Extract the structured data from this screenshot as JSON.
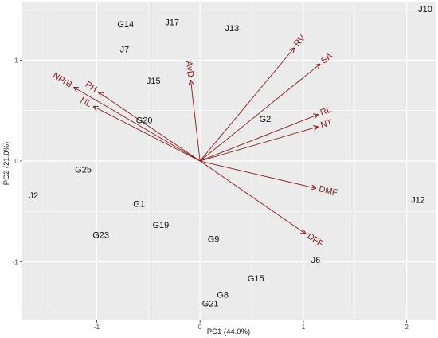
{
  "chart_data": {
    "type": "scatter",
    "subtype": "biplot",
    "title": "",
    "xlabel": "PC1 (44.0%)",
    "ylabel": "PC2 (21.0%)",
    "xlim": [
      -1.72,
      2.28
    ],
    "ylim": [
      -1.58,
      1.58
    ],
    "x_ticks": [
      -1,
      0,
      1,
      2
    ],
    "y_ticks": [
      -1,
      0,
      1
    ],
    "grid": true,
    "panel_background": "#ebebeb",
    "grid_color": "#ffffff",
    "vector_color": "#8b1a1a",
    "point_label_color": "#111111",
    "observations": [
      {
        "label": "J10",
        "x": 2.18,
        "y": 1.5
      },
      {
        "label": "G14",
        "x": -0.72,
        "y": 1.35
      },
      {
        "label": "J17",
        "x": -0.27,
        "y": 1.37
      },
      {
        "label": "J13",
        "x": 0.31,
        "y": 1.31
      },
      {
        "label": "J7",
        "x": -0.73,
        "y": 1.1
      },
      {
        "label": "J15",
        "x": -0.45,
        "y": 0.79
      },
      {
        "label": "G20",
        "x": -0.54,
        "y": 0.4
      },
      {
        "label": "G2",
        "x": 0.63,
        "y": 0.41
      },
      {
        "label": "G25",
        "x": -1.13,
        "y": -0.09
      },
      {
        "label": "J2",
        "x": -1.61,
        "y": -0.35
      },
      {
        "label": "J12",
        "x": 2.11,
        "y": -0.39
      },
      {
        "label": "G1",
        "x": -0.59,
        "y": -0.43
      },
      {
        "label": "G19",
        "x": -0.38,
        "y": -0.64
      },
      {
        "label": "G23",
        "x": -0.96,
        "y": -0.74
      },
      {
        "label": "G9",
        "x": 0.13,
        "y": -0.78
      },
      {
        "label": "J6",
        "x": 1.12,
        "y": -0.99
      },
      {
        "label": "G15",
        "x": 0.54,
        "y": -1.17
      },
      {
        "label": "G8",
        "x": 0.22,
        "y": -1.33
      },
      {
        "label": "G21",
        "x": 0.1,
        "y": -1.42
      }
    ],
    "variables": [
      {
        "label": "RV",
        "x": 0.91,
        "y": 1.12
      },
      {
        "label": "SA",
        "x": 1.16,
        "y": 0.96
      },
      {
        "label": "AvD",
        "x": -0.09,
        "y": 0.8
      },
      {
        "label": "NPrB",
        "x": -1.22,
        "y": 0.73
      },
      {
        "label": "PH",
        "x": -0.98,
        "y": 0.68
      },
      {
        "label": "NL",
        "x": -1.03,
        "y": 0.54
      },
      {
        "label": "RL",
        "x": 1.14,
        "y": 0.46
      },
      {
        "label": "NT",
        "x": 1.14,
        "y": 0.34
      },
      {
        "label": "DMF",
        "x": 1.12,
        "y": -0.27
      },
      {
        "label": "DFF",
        "x": 1.02,
        "y": -0.72
      }
    ]
  }
}
